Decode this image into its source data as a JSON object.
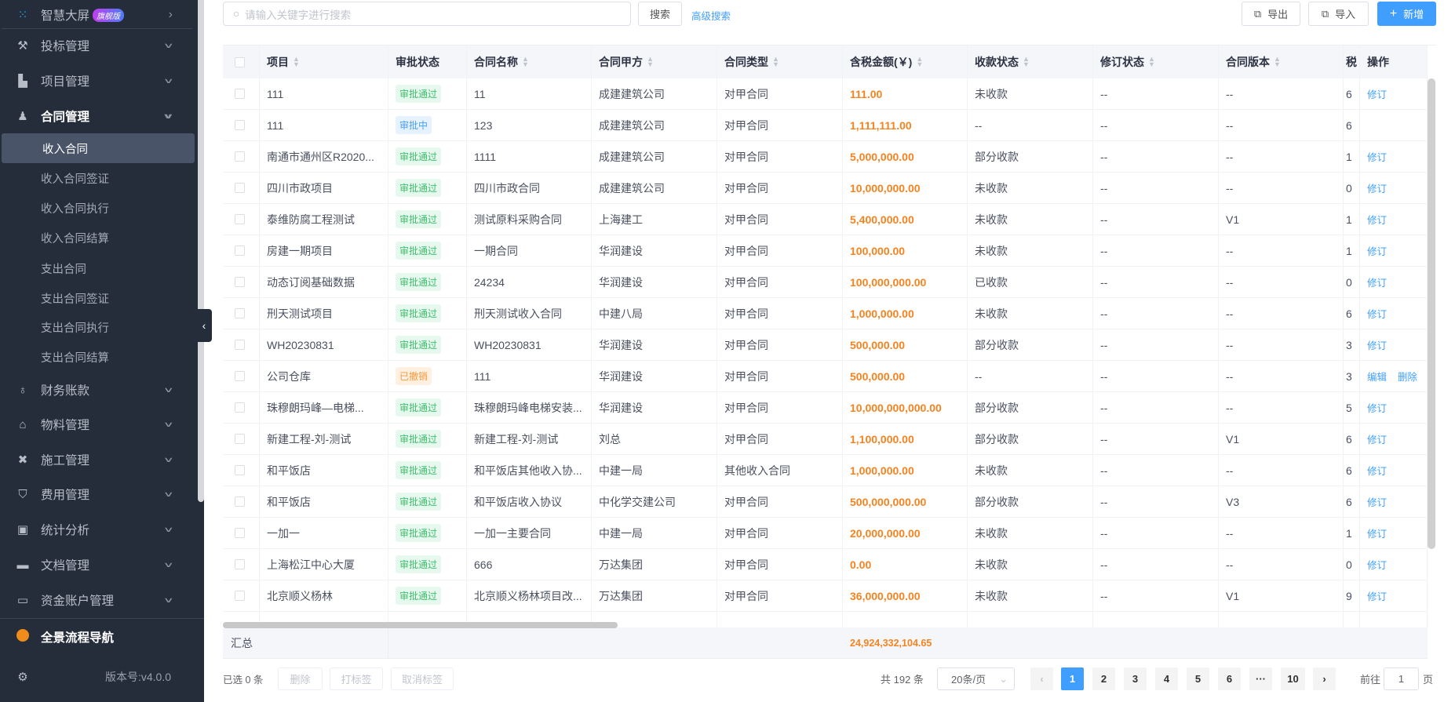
{
  "sidebar": {
    "top": {
      "label": "智慧大屏",
      "badge": "旗舰版"
    },
    "menus": [
      {
        "label": "投标管理",
        "icon": "gavel-icon"
      },
      {
        "label": "项目管理",
        "icon": "building-icon"
      },
      {
        "label": "合同管理",
        "icon": "stamp-icon",
        "expanded": true
      }
    ],
    "submenu": [
      "收入合同",
      "收入合同签证",
      "收入合同执行",
      "收入合同结算",
      "支出合同",
      "支出合同签证",
      "支出合同执行",
      "支出合同结算"
    ],
    "active_sub": "收入合同",
    "menus2": [
      {
        "label": "财务账款",
        "icon": "money-bag-icon"
      },
      {
        "label": "物料管理",
        "icon": "warehouse-icon"
      },
      {
        "label": "施工管理",
        "icon": "tools-icon"
      },
      {
        "label": "费用管理",
        "icon": "shield-yen-icon"
      },
      {
        "label": "统计分析",
        "icon": "chart-box-icon"
      },
      {
        "label": "文档管理",
        "icon": "folder-icon"
      },
      {
        "label": "资金账户管理",
        "icon": "card-icon"
      }
    ],
    "nav": "全景流程导航",
    "version": "版本号:v4.0.0"
  },
  "toolbar": {
    "search_placeholder": "请输入关键字进行搜索",
    "search": "搜索",
    "advanced": "高级搜索",
    "export": "导出",
    "import": "导入",
    "add": "新增"
  },
  "colors": {
    "accent": "#409eff",
    "amount": "#f5831f",
    "sidebar": "#252d3b"
  },
  "table": {
    "columns": [
      "项目",
      "审批状态",
      "合同名称",
      "合同甲方",
      "合同类型",
      "含税金额(￥)",
      "收款状态",
      "修订状态",
      "合同版本",
      "税",
      "操作"
    ],
    "rows": [
      [
        "111",
        "审批通过",
        "11",
        "成建建筑公司",
        "对甲合同",
        "111.00",
        "未收款",
        "--",
        "--",
        "6",
        [
          "修订"
        ]
      ],
      [
        "111",
        "审批中",
        "123",
        "成建建筑公司",
        "对甲合同",
        "1,111,111.00",
        "--",
        "--",
        "--",
        "6",
        []
      ],
      [
        "南通市通州区R2020...",
        "审批通过",
        "1111",
        "成建建筑公司",
        "对甲合同",
        "5,000,000.00",
        "部分收款",
        "--",
        "--",
        "1",
        [
          "修订"
        ]
      ],
      [
        "四川市政项目",
        "审批通过",
        "四川市政合同",
        "成建建筑公司",
        "对甲合同",
        "10,000,000.00",
        "未收款",
        "--",
        "--",
        "0",
        [
          "修订"
        ]
      ],
      [
        "泰维防腐工程测试",
        "审批通过",
        "测试原料采购合同",
        "上海建工",
        "对甲合同",
        "5,400,000.00",
        "未收款",
        "--",
        "V1",
        "1",
        [
          "修订"
        ]
      ],
      [
        "房建一期项目",
        "审批通过",
        "一期合同",
        "华润建设",
        "对甲合同",
        "100,000.00",
        "未收款",
        "--",
        "--",
        "1",
        [
          "修订"
        ]
      ],
      [
        "动态订阅基础数据",
        "审批通过",
        "24234",
        "华润建设",
        "对甲合同",
        "100,000,000.00",
        "已收款",
        "--",
        "--",
        "0",
        [
          "修订"
        ]
      ],
      [
        "刑天测试项目",
        "审批通过",
        "刑天测试收入合同",
        "中建八局",
        "对甲合同",
        "1,000,000.00",
        "未收款",
        "--",
        "--",
        "6",
        [
          "修订"
        ]
      ],
      [
        "WH20230831",
        "审批通过",
        "WH20230831",
        "华润建设",
        "对甲合同",
        "500,000.00",
        "部分收款",
        "--",
        "--",
        "3",
        [
          "修订"
        ]
      ],
      [
        "公司仓库",
        "已撤销",
        "111",
        "华润建设",
        "对甲合同",
        "500,000.00",
        "--",
        "--",
        "--",
        "3",
        [
          "编辑",
          "删除"
        ]
      ],
      [
        "珠穆朗玛峰—电梯...",
        "审批通过",
        "珠穆朗玛峰电梯安装...",
        "华润建设",
        "对甲合同",
        "10,000,000,000.00",
        "部分收款",
        "--",
        "--",
        "5",
        [
          "修订"
        ]
      ],
      [
        "新建工程-刘-测试",
        "审批通过",
        "新建工程-刘-测试",
        "刘总",
        "对甲合同",
        "1,100,000.00",
        "部分收款",
        "--",
        "V1",
        "6",
        [
          "修订"
        ]
      ],
      [
        "和平饭店",
        "审批通过",
        "和平饭店其他收入协...",
        "中建一局",
        "其他收入合同",
        "1,000,000.00",
        "未收款",
        "--",
        "--",
        "6",
        [
          "修订"
        ]
      ],
      [
        "和平饭店",
        "审批通过",
        "和平饭店收入协议",
        "中化学交建公司",
        "对甲合同",
        "500,000,000.00",
        "部分收款",
        "--",
        "V3",
        "6",
        [
          "修订"
        ]
      ],
      [
        "一加一",
        "审批通过",
        "一加一主要合同",
        "中建一局",
        "对甲合同",
        "20,000,000.00",
        "未收款",
        "--",
        "--",
        "1",
        [
          "修订"
        ]
      ],
      [
        "上海松江中心大厦",
        "审批通过",
        "666",
        "万达集团",
        "对甲合同",
        "0.00",
        "未收款",
        "--",
        "--",
        "0",
        [
          "修订"
        ]
      ],
      [
        "北京顺义杨林",
        "审批通过",
        "北京顺义杨林项目改...",
        "万达集团",
        "对甲合同",
        "36,000,000.00",
        "未收款",
        "--",
        "V1",
        "9",
        [
          "修订"
        ]
      ]
    ],
    "summary_label": "汇总",
    "summary_amount": "24,924,332,104.65"
  },
  "footer": {
    "selected": "已选 0 条",
    "delete": "删除",
    "tag": "打标签",
    "untag": "取消标签",
    "total": "共 192 条",
    "page_size": "20条/页",
    "pages": [
      "1",
      "2",
      "3",
      "4",
      "5",
      "6",
      "···",
      "10"
    ],
    "current_page": "1",
    "goto": "前往",
    "goto_value": "1",
    "page_unit": "页"
  }
}
